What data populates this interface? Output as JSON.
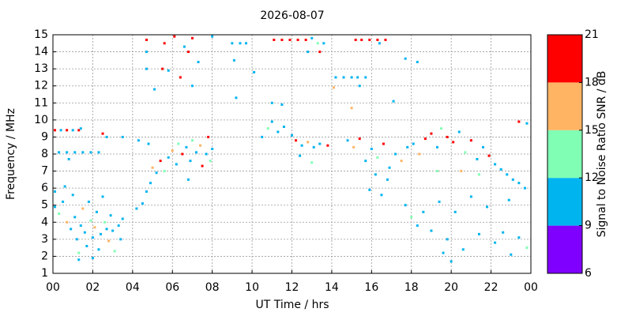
{
  "chart_data": {
    "type": "scatter",
    "title": "2026-08-07",
    "x_label": "UT Time / hrs",
    "y_label": "Frequency / MHz",
    "xlim": [
      0,
      24
    ],
    "ylim": [
      1,
      15
    ],
    "xticks": [
      {
        "value": 0,
        "label": "00"
      },
      {
        "value": 2,
        "label": "02"
      },
      {
        "value": 4,
        "label": "04"
      },
      {
        "value": 6,
        "label": "06"
      },
      {
        "value": 8,
        "label": "08"
      },
      10,
      12,
      14,
      16,
      18,
      20,
      22,
      {
        "value": 24,
        "label": "00"
      }
    ],
    "yticks": [
      1,
      2,
      3,
      4,
      5,
      6,
      7,
      8,
      9,
      10,
      11,
      12,
      13,
      14,
      15
    ],
    "grid": true,
    "colorbar": {
      "label": "Signal to Noise Ratio SNR / dB",
      "lim": [
        6,
        21
      ],
      "ticks": [
        6,
        9,
        12,
        15,
        18,
        21
      ],
      "colors": [
        "#8000ff",
        "#00b4f0",
        "#80ffb4",
        "#ffb464",
        "#ff0000"
      ]
    },
    "points": [
      [
        0.1,
        9.4,
        19
      ],
      [
        0.4,
        9.4,
        10
      ],
      [
        0.7,
        9.4,
        19
      ],
      [
        1.0,
        9.4,
        10
      ],
      [
        1.3,
        9.4,
        19
      ],
      [
        1.4,
        9.5,
        10
      ],
      [
        0.3,
        8.1,
        10
      ],
      [
        0.7,
        8.1,
        10
      ],
      [
        1.1,
        8.1,
        10
      ],
      [
        1.5,
        8.1,
        10
      ],
      [
        1.9,
        8.1,
        10
      ],
      [
        2.3,
        8.1,
        10
      ],
      [
        0.8,
        7.7,
        10
      ],
      [
        0.1,
        5.8,
        10
      ],
      [
        0.1,
        4.9,
        10
      ],
      [
        0.3,
        4.5,
        13
      ],
      [
        0.5,
        5.2,
        10
      ],
      [
        0.7,
        4.0,
        16
      ],
      [
        0.9,
        3.6,
        10
      ],
      [
        1.0,
        5.6,
        10
      ],
      [
        1.1,
        4.3,
        10
      ],
      [
        1.2,
        3.0,
        10
      ],
      [
        1.3,
        2.2,
        13
      ],
      [
        1.4,
        3.8,
        10
      ],
      [
        1.5,
        4.8,
        16
      ],
      [
        1.6,
        3.4,
        10
      ],
      [
        1.7,
        2.6,
        10
      ],
      [
        1.8,
        5.2,
        10
      ],
      [
        1.9,
        4.1,
        13
      ],
      [
        2.0,
        3.1,
        10
      ],
      [
        2.1,
        3.7,
        16
      ],
      [
        2.2,
        4.6,
        10
      ],
      [
        2.3,
        2.4,
        10
      ],
      [
        2.4,
        3.3,
        10
      ],
      [
        2.5,
        5.5,
        10
      ],
      [
        2.6,
        4.0,
        13
      ],
      [
        2.7,
        3.6,
        10
      ],
      [
        2.8,
        2.9,
        16
      ],
      [
        2.9,
        4.4,
        10
      ],
      [
        3.0,
        3.5,
        10
      ],
      [
        3.1,
        2.3,
        13
      ],
      [
        3.3,
        3.8,
        10
      ],
      [
        3.5,
        4.2,
        10
      ],
      [
        3.4,
        3.0,
        10
      ],
      [
        0.6,
        6.1,
        10
      ],
      [
        1.3,
        1.8,
        10
      ],
      [
        2.0,
        1.9,
        10
      ],
      [
        2.5,
        9.2,
        19
      ],
      [
        2.7,
        9.0,
        10
      ],
      [
        3.5,
        9.0,
        10
      ],
      [
        4.2,
        4.8,
        10
      ],
      [
        4.5,
        5.1,
        10
      ],
      [
        4.7,
        5.8,
        10
      ],
      [
        4.9,
        6.3,
        10
      ],
      [
        5.0,
        7.2,
        16
      ],
      [
        5.2,
        6.9,
        10
      ],
      [
        5.4,
        7.6,
        19
      ],
      [
        5.6,
        7.0,
        13
      ],
      [
        5.8,
        7.8,
        10
      ],
      [
        6.0,
        8.2,
        16
      ],
      [
        6.2,
        7.4,
        10
      ],
      [
        6.3,
        8.6,
        13
      ],
      [
        6.5,
        8.0,
        19
      ],
      [
        6.7,
        8.4,
        10
      ],
      [
        6.9,
        7.6,
        10
      ],
      [
        7.0,
        8.8,
        13
      ],
      [
        7.2,
        8.1,
        10
      ],
      [
        7.4,
        8.5,
        16
      ],
      [
        7.5,
        7.3,
        19
      ],
      [
        7.7,
        8.0,
        10
      ],
      [
        7.8,
        9.0,
        19
      ],
      [
        7.9,
        7.6,
        13
      ],
      [
        8.0,
        8.3,
        10
      ],
      [
        4.3,
        8.8,
        10
      ],
      [
        4.8,
        8.6,
        10
      ],
      [
        6.8,
        6.5,
        10
      ],
      [
        4.7,
        14.7,
        19
      ],
      [
        5.6,
        14.5,
        19
      ],
      [
        6.1,
        14.9,
        19
      ],
      [
        6.6,
        14.3,
        10
      ],
      [
        7.0,
        14.8,
        19
      ],
      [
        8.0,
        14.9,
        10
      ],
      [
        6.8,
        14.0,
        19
      ],
      [
        5.5,
        13.0,
        19
      ],
      [
        5.8,
        12.9,
        10
      ],
      [
        6.4,
        12.5,
        19
      ],
      [
        5.1,
        11.8,
        10
      ],
      [
        4.7,
        13.0,
        10
      ],
      [
        4.7,
        14.0,
        10
      ],
      [
        7.3,
        13.4,
        10
      ],
      [
        7.0,
        12.0,
        10
      ],
      [
        9.0,
        14.5,
        10
      ],
      [
        9.4,
        14.5,
        10
      ],
      [
        9.7,
        14.5,
        10
      ],
      [
        9.1,
        13.5,
        10
      ],
      [
        10.1,
        12.8,
        10
      ],
      [
        9.2,
        11.3,
        10
      ],
      [
        10.5,
        9.0,
        10
      ],
      [
        10.8,
        9.5,
        13
      ],
      [
        11.0,
        9.9,
        10
      ],
      [
        11.3,
        9.3,
        10
      ],
      [
        11.6,
        9.6,
        10
      ],
      [
        12.0,
        9.1,
        10
      ],
      [
        12.2,
        8.8,
        19
      ],
      [
        12.5,
        8.5,
        10
      ],
      [
        12.8,
        8.7,
        16
      ],
      [
        13.1,
        8.4,
        10
      ],
      [
        13.4,
        8.6,
        10
      ],
      [
        13.8,
        8.5,
        19
      ],
      [
        12.4,
        7.9,
        10
      ],
      [
        13.0,
        7.5,
        13
      ],
      [
        11.0,
        11.0,
        10
      ],
      [
        11.5,
        10.9,
        10
      ],
      [
        11.1,
        14.7,
        19
      ],
      [
        11.5,
        14.7,
        19
      ],
      [
        11.9,
        14.7,
        19
      ],
      [
        12.3,
        14.7,
        19
      ],
      [
        12.7,
        14.7,
        19
      ],
      [
        13.0,
        14.8,
        10
      ],
      [
        13.3,
        14.5,
        13
      ],
      [
        13.6,
        14.5,
        10
      ],
      [
        12.8,
        14.0,
        10
      ],
      [
        13.4,
        14.0,
        19
      ],
      [
        14.2,
        12.5,
        10
      ],
      [
        14.6,
        12.5,
        10
      ],
      [
        15.0,
        12.5,
        10
      ],
      [
        15.3,
        12.5,
        10
      ],
      [
        15.7,
        12.5,
        10
      ],
      [
        14.1,
        11.9,
        16
      ],
      [
        15.4,
        12.0,
        10
      ],
      [
        15.2,
        14.7,
        19
      ],
      [
        15.5,
        14.7,
        19
      ],
      [
        15.9,
        14.7,
        19
      ],
      [
        16.3,
        14.7,
        19
      ],
      [
        16.7,
        14.7,
        19
      ],
      [
        16.4,
        14.5,
        10
      ],
      [
        14.8,
        8.8,
        10
      ],
      [
        15.1,
        8.4,
        16
      ],
      [
        15.4,
        8.9,
        19
      ],
      [
        15.7,
        7.6,
        10
      ],
      [
        16.0,
        8.3,
        10
      ],
      [
        16.3,
        7.8,
        13
      ],
      [
        16.6,
        8.6,
        19
      ],
      [
        16.9,
        7.2,
        10
      ],
      [
        17.2,
        8.0,
        10
      ],
      [
        17.5,
        7.6,
        16
      ],
      [
        17.8,
        8.4,
        10
      ],
      [
        16.2,
        6.8,
        10
      ],
      [
        16.8,
        6.5,
        10
      ],
      [
        16.5,
        5.6,
        10
      ],
      [
        15.9,
        5.9,
        10
      ],
      [
        18.1,
        8.6,
        10
      ],
      [
        18.4,
        8.0,
        16
      ],
      [
        18.7,
        8.9,
        19
      ],
      [
        19.0,
        9.2,
        19
      ],
      [
        19.3,
        8.4,
        10
      ],
      [
        19.5,
        9.5,
        13
      ],
      [
        19.8,
        9.0,
        19
      ],
      [
        20.1,
        8.7,
        19
      ],
      [
        20.4,
        9.3,
        10
      ],
      [
        20.7,
        8.1,
        13
      ],
      [
        21.0,
        8.8,
        19
      ],
      [
        21.3,
        7.7,
        10
      ],
      [
        21.6,
        8.4,
        10
      ],
      [
        21.9,
        7.9,
        19
      ],
      [
        22.2,
        7.4,
        10
      ],
      [
        22.5,
        7.1,
        10
      ],
      [
        22.8,
        6.8,
        10
      ],
      [
        23.1,
        6.5,
        10
      ],
      [
        23.4,
        6.3,
        10
      ],
      [
        23.7,
        6.0,
        10
      ],
      [
        19.3,
        7.0,
        13
      ],
      [
        20.5,
        7.0,
        16
      ],
      [
        21.4,
        6.8,
        13
      ],
      [
        17.7,
        5.0,
        10
      ],
      [
        18.0,
        4.3,
        13
      ],
      [
        18.3,
        3.8,
        10
      ],
      [
        18.6,
        4.6,
        10
      ],
      [
        19.0,
        3.5,
        10
      ],
      [
        19.4,
        5.2,
        10
      ],
      [
        19.8,
        3.0,
        10
      ],
      [
        20.2,
        4.6,
        10
      ],
      [
        20.6,
        2.4,
        10
      ],
      [
        21.0,
        5.5,
        10
      ],
      [
        21.4,
        3.3,
        10
      ],
      [
        21.8,
        4.9,
        10
      ],
      [
        22.2,
        2.8,
        10
      ],
      [
        22.6,
        3.4,
        10
      ],
      [
        23.0,
        2.1,
        10
      ],
      [
        23.4,
        3.1,
        10
      ],
      [
        23.8,
        2.5,
        13
      ],
      [
        22.9,
        5.3,
        10
      ],
      [
        19.6,
        2.2,
        10
      ],
      [
        20.0,
        1.7,
        10
      ],
      [
        23.4,
        9.9,
        19
      ],
      [
        23.8,
        9.8,
        10
      ],
      [
        17.7,
        13.6,
        10
      ],
      [
        18.3,
        13.4,
        10
      ],
      [
        17.1,
        11.1,
        10
      ],
      [
        15.0,
        10.7,
        16
      ]
    ]
  }
}
